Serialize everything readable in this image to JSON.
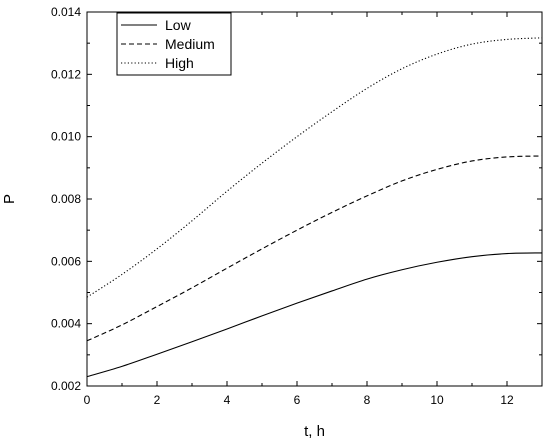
{
  "chart_data": {
    "type": "line",
    "xlabel": "t, h",
    "ylabel": "P",
    "xlim": [
      0,
      13
    ],
    "ylim": [
      0.002,
      0.014
    ],
    "xticks": [
      0,
      2,
      4,
      6,
      8,
      10,
      12
    ],
    "yticks": [
      0.002,
      0.004,
      0.006,
      0.008,
      0.01,
      0.012,
      0.014
    ],
    "ytick_labels": [
      "0.002",
      "0.004",
      "0.006",
      "0.008",
      "0.010",
      "0.012",
      "0.014"
    ],
    "grid": false,
    "legend_position": "top-left",
    "x": [
      0,
      1,
      2,
      3,
      4,
      5,
      6,
      7,
      8,
      9,
      10,
      11,
      12,
      13
    ],
    "series": [
      {
        "name": "Low",
        "dash": "solid",
        "values": [
          0.0023,
          0.00263,
          0.00302,
          0.00342,
          0.00383,
          0.00425,
          0.00466,
          0.00505,
          0.00543,
          0.00573,
          0.00597,
          0.00615,
          0.00625,
          0.00627
        ]
      },
      {
        "name": "Medium",
        "dash": "dashed",
        "values": [
          0.00345,
          0.00396,
          0.00455,
          0.00515,
          0.00578,
          0.0064,
          0.007,
          0.00757,
          0.0081,
          0.00858,
          0.00895,
          0.00922,
          0.00935,
          0.00938
        ]
      },
      {
        "name": "High",
        "dash": "dotted",
        "values": [
          0.00485,
          0.00558,
          0.0064,
          0.0073,
          0.00825,
          0.00915,
          0.01,
          0.0108,
          0.01155,
          0.01218,
          0.01265,
          0.01297,
          0.01312,
          0.01317
        ]
      }
    ]
  }
}
